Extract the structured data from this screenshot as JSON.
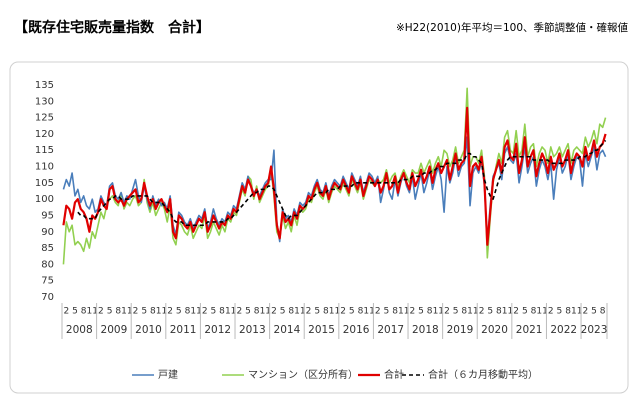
{
  "chart_data": {
    "type": "line",
    "title": "【既存住宅販売量指数　合計】",
    "subtitle": "※H22(2010)年平均＝100、季節調整値・確報値",
    "years": [
      "2008",
      "2009",
      "2010",
      "2011",
      "2012",
      "2013",
      "2014",
      "2015",
      "2016",
      "2017",
      "2018",
      "2019",
      "2020",
      "2021",
      "2022",
      "2023"
    ],
    "categories": [
      null,
      "2",
      null,
      null,
      "5",
      null,
      null,
      "8",
      null,
      null,
      "11",
      null,
      null,
      "2",
      null,
      null,
      "5",
      null,
      null,
      "8",
      null,
      null,
      "11",
      null,
      null,
      "2",
      null,
      null,
      "5",
      null,
      null,
      "8",
      null,
      null,
      "11",
      null,
      null,
      "2",
      null,
      null,
      "5",
      null,
      null,
      "8",
      null,
      null,
      "11",
      null,
      null,
      "2",
      null,
      null,
      "5",
      null,
      null,
      "8",
      null,
      null,
      "11",
      null,
      null,
      "2",
      null,
      null,
      "5",
      null,
      null,
      "8",
      null,
      null,
      "11",
      null,
      null,
      "2",
      null,
      null,
      "5",
      null,
      null,
      "8",
      null,
      null,
      "11",
      null,
      null,
      "2",
      null,
      null,
      "5",
      null,
      null,
      "8",
      null,
      null,
      "11",
      null,
      null,
      "2",
      null,
      null,
      "5",
      null,
      null,
      "8",
      null,
      null,
      "11",
      null,
      null,
      "2",
      null,
      null,
      "5",
      null,
      null,
      "8",
      null,
      null,
      "11",
      null,
      null,
      "2",
      null,
      null,
      "5",
      null,
      null,
      "8",
      null,
      null,
      "11",
      null,
      null,
      "2",
      null,
      null,
      "5",
      null,
      null,
      "8",
      null,
      null,
      "11",
      null,
      null,
      "2",
      null,
      null,
      "5",
      null,
      null,
      "8",
      null,
      null,
      "11",
      null,
      null,
      "2",
      null,
      null,
      "5",
      null,
      null,
      "8",
      null,
      null,
      "11",
      null,
      null,
      "2",
      null,
      null,
      "5",
      null,
      null,
      "8",
      null,
      null,
      "11",
      null,
      null,
      "2",
      null,
      null,
      "5",
      null,
      null,
      "8",
      null
    ],
    "series": [
      {
        "name": "戸建",
        "color": "#4a7ebb",
        "dashed": false,
        "values": [
          103,
          106,
          104,
          108,
          101,
          103,
          99,
          101,
          98,
          97,
          100,
          96,
          97,
          101,
          99,
          98,
          104,
          105,
          101,
          100,
          102,
          99,
          101,
          100,
          103,
          106,
          101,
          99,
          104,
          100,
          97,
          101,
          98,
          100,
          98,
          99,
          97,
          101,
          92,
          89,
          96,
          95,
          93,
          92,
          94,
          91,
          93,
          95,
          94,
          97,
          91,
          93,
          97,
          94,
          92,
          94,
          93,
          96,
          95,
          98,
          97,
          101,
          105,
          103,
          107,
          104,
          102,
          103,
          101,
          103,
          105,
          106,
          106,
          115,
          93,
          87,
          97,
          94,
          95,
          93,
          97,
          95,
          99,
          98,
          99,
          102,
          101,
          104,
          106,
          103,
          102,
          105,
          101,
          104,
          106,
          105,
          104,
          107,
          105,
          103,
          108,
          106,
          104,
          107,
          102,
          105,
          108,
          107,
          105,
          107,
          99,
          103,
          108,
          102,
          100,
          106,
          101,
          105,
          108,
          104,
          102,
          107,
          100,
          104,
          108,
          102,
          105,
          109,
          103,
          107,
          110,
          106,
          96,
          110,
          105,
          108,
          113,
          107,
          110,
          111,
          119,
          98,
          108,
          110,
          108,
          112,
          104,
          87,
          98,
          107,
          109,
          111,
          106,
          114,
          116,
          112,
          111,
          114,
          105,
          110,
          116,
          108,
          111,
          113,
          104,
          109,
          112,
          110,
          106,
          111,
          100,
          109,
          113,
          108,
          110,
          114,
          106,
          110,
          113,
          112,
          104,
          114,
          110,
          113,
          116,
          109,
          114,
          115,
          113
        ]
      },
      {
        "name": "マンション（区分所有）",
        "color": "#92d050",
        "dashed": false,
        "values": [
          80,
          93,
          90,
          92,
          86,
          87,
          86,
          84,
          88,
          85,
          90,
          88,
          92,
          96,
          94,
          98,
          100,
          101,
          99,
          98,
          102,
          97,
          99,
          98,
          100,
          101,
          98,
          99,
          106,
          99,
          96,
          99,
          95,
          97,
          99,
          97,
          93,
          98,
          88,
          86,
          93,
          92,
          90,
          89,
          92,
          88,
          90,
          92,
          91,
          95,
          88,
          90,
          93,
          91,
          89,
          92,
          90,
          94,
          93,
          96,
          95,
          99,
          103,
          101,
          107,
          106,
          100,
          104,
          99,
          101,
          103,
          104,
          109,
          101,
          90,
          88,
          95,
          91,
          93,
          90,
          95,
          92,
          97,
          96,
          97,
          100,
          99,
          102,
          104,
          101,
          100,
          103,
          99,
          102,
          104,
          103,
          102,
          105,
          103,
          101,
          106,
          104,
          102,
          105,
          100,
          103,
          106,
          105,
          104,
          106,
          105,
          106,
          109,
          105,
          107,
          108,
          104,
          107,
          109,
          107,
          105,
          109,
          108,
          108,
          111,
          108,
          110,
          112,
          108,
          111,
          113,
          110,
          115,
          114,
          110,
          112,
          116,
          111,
          113,
          115,
          134,
          110,
          113,
          113,
          111,
          115,
          107,
          82,
          94,
          105,
          110,
          114,
          111,
          119,
          121,
          115,
          114,
          121,
          113,
          115,
          123,
          113,
          116,
          117,
          110,
          114,
          116,
          115,
          111,
          116,
          113,
          114,
          116,
          113,
          115,
          117,
          111,
          115,
          116,
          115,
          114,
          119,
          116,
          118,
          121,
          117,
          123,
          122,
          125
        ]
      },
      {
        "name": "合計",
        "color": "#e00000",
        "dashed": false,
        "values": [
          92,
          98,
          97,
          94,
          99,
          100,
          97,
          96,
          94,
          90,
          95,
          94,
          96,
          100,
          98,
          97,
          103,
          104,
          100,
          99,
          100,
          98,
          100,
          101,
          102,
          103,
          99,
          100,
          105,
          101,
          98,
          100,
          97,
          99,
          100,
          98,
          96,
          100,
          90,
          88,
          95,
          94,
          92,
          91,
          93,
          90,
          92,
          94,
          93,
          96,
          90,
          92,
          95,
          93,
          91,
          93,
          92,
          95,
          94,
          97,
          96,
          100,
          104,
          102,
          106,
          104,
          101,
          103,
          100,
          102,
          104,
          105,
          110,
          103,
          92,
          88,
          96,
          93,
          94,
          92,
          96,
          94,
          98,
          97,
          98,
          101,
          100,
          103,
          105,
          102,
          101,
          104,
          100,
          103,
          105,
          104,
          103,
          106,
          104,
          102,
          107,
          105,
          103,
          106,
          101,
          104,
          107,
          106,
          104,
          106,
          102,
          104,
          108,
          103,
          104,
          107,
          102,
          106,
          108,
          105,
          103,
          108,
          104,
          106,
          109,
          105,
          107,
          110,
          105,
          109,
          111,
          108,
          110,
          112,
          106,
          110,
          114,
          109,
          111,
          112,
          128,
          104,
          110,
          111,
          109,
          113,
          105,
          86,
          96,
          106,
          109,
          112,
          108,
          116,
          118,
          113,
          112,
          117,
          108,
          112,
          119,
          110,
          113,
          115,
          107,
          111,
          114,
          112,
          108,
          113,
          109,
          111,
          114,
          110,
          112,
          115,
          108,
          112,
          114,
          113,
          110,
          116,
          112,
          114,
          118,
          113,
          116,
          117,
          120
        ]
      },
      {
        "name": "合計（６カ月移動平均）",
        "color": "#000000",
        "dashed": true,
        "values": [
          null,
          null,
          null,
          null,
          null,
          96,
          95,
          95,
          94,
          94,
          94,
          94,
          96,
          97,
          98,
          99,
          100,
          100,
          101,
          101,
          100,
          100,
          100,
          100,
          101,
          101,
          101,
          101,
          101,
          101,
          100,
          99,
          99,
          99,
          99,
          98,
          97,
          96,
          94,
          93,
          93,
          93,
          92,
          92,
          92,
          92,
          92,
          92,
          92,
          92,
          93,
          93,
          93,
          93,
          93,
          93,
          93,
          94,
          94,
          95,
          96,
          97,
          98,
          99,
          100,
          101,
          102,
          102,
          103,
          103,
          103,
          104,
          104,
          103,
          101,
          99,
          97,
          95,
          94,
          95,
          95,
          95,
          96,
          97,
          98,
          99,
          100,
          101,
          102,
          102,
          102,
          102,
          103,
          103,
          103,
          103,
          104,
          104,
          104,
          104,
          104,
          105,
          105,
          105,
          105,
          105,
          105,
          105,
          105,
          105,
          105,
          105,
          105,
          105,
          105,
          105,
          105,
          106,
          106,
          106,
          106,
          107,
          107,
          107,
          107,
          108,
          108,
          108,
          109,
          109,
          110,
          110,
          110,
          111,
          111,
          111,
          111,
          112,
          112,
          112,
          114,
          114,
          113,
          113,
          112,
          111,
          106,
          103,
          101,
          100,
          103,
          106,
          108,
          110,
          112,
          113,
          113,
          113,
          113,
          113,
          113,
          113,
          113,
          112,
          112,
          112,
          112,
          112,
          112,
          111,
          111,
          111,
          111,
          111,
          112,
          112,
          112,
          112,
          112,
          113,
          113,
          113,
          114,
          114,
          115,
          115,
          116,
          117,
          118
        ]
      }
    ],
    "ylim": [
      70,
      135
    ],
    "yticks": [
      70,
      75,
      80,
      85,
      90,
      95,
      100,
      105,
      110,
      115,
      120,
      125,
      130,
      135
    ],
    "grid": false,
    "legend": "bottom"
  }
}
